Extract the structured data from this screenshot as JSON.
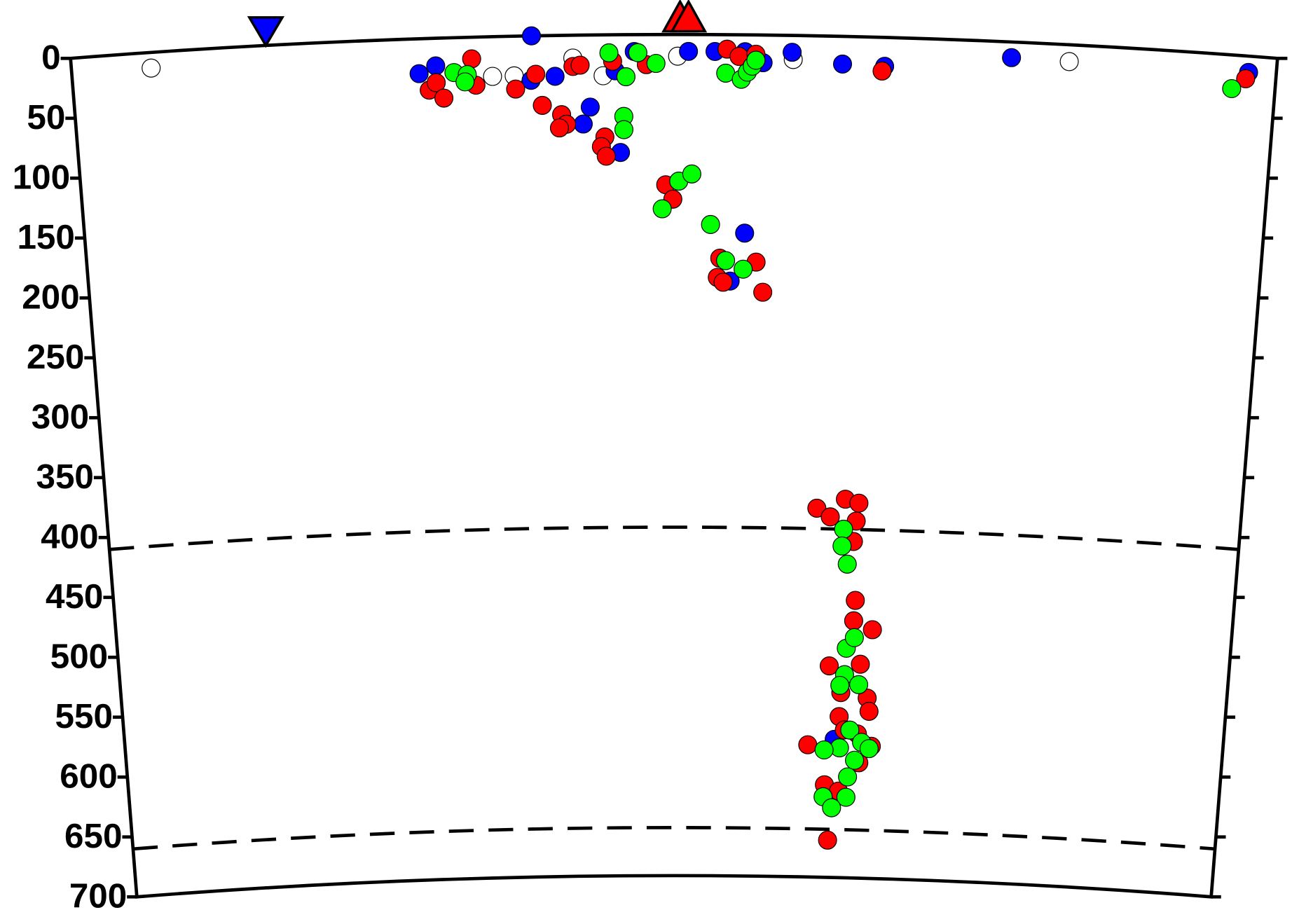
{
  "chart_data": {
    "type": "scatter",
    "xlim": [
      0,
      1000
    ],
    "ylim": [
      0,
      700
    ],
    "y_inverted": true,
    "yticks": [
      0,
      50,
      100,
      150,
      200,
      250,
      300,
      350,
      400,
      450,
      500,
      550,
      600,
      650,
      700
    ],
    "reference_depths": [
      410,
      660
    ],
    "markers": [
      {
        "x": 162,
        "color": "#0000ff",
        "shape": "triangle-down"
      },
      {
        "x": 505,
        "color": "#ff0000",
        "shape": "triangle-up"
      },
      {
        "x": 512,
        "color": "#ff0000",
        "shape": "triangle-up"
      }
    ],
    "series": [
      {
        "color": "#ffffff",
        "x": [
          66,
          349,
          367,
          416,
          441,
          503,
          599,
          828
        ],
        "values": [
          13,
          33,
          33,
          19,
          34,
          18,
          20,
          14
        ]
      },
      {
        "color": "#0000ff",
        "x": [
          382,
          288,
          302,
          381,
          401,
          430,
          424,
          455,
          451,
          467,
          512,
          534,
          559,
          574,
          598,
          640,
          675,
          780,
          977,
          560,
          548,
          646
        ],
        "values": [
          0,
          29,
          23,
          37,
          34,
          60,
          74,
          98,
          30,
          14,
          14,
          14,
          14,
          23,
          14,
          23,
          24,
          13,
          13.5,
          165,
          205,
          585
        ]
      },
      {
        "color": "#ff0000",
        "x": [
          332,
          335,
          296,
          302,
          308,
          368,
          385,
          390,
          406,
          410,
          404,
          416,
          422,
          442,
          439,
          443,
          449,
          477,
          493,
          499,
          539,
          537,
          542,
          570,
          576,
          544,
          554,
          568,
          673,
          975,
          626,
          638,
          651,
          663,
          661,
          659,
          662,
          661,
          678,
          640,
          668,
          651,
          675,
          650,
          677,
          655,
          667,
          622,
          680,
          669,
          638,
          651,
          642
        ],
        "values": [
          18,
          40,
          43,
          37,
          50,
          44,
          32,
          58,
          66,
          74,
          77,
          26,
          25,
          85,
          93,
          101,
          22,
          25,
          125,
          137,
          186,
          202,
          206,
          189,
          214,
          12,
          18,
          16,
          28,
          19,
          393,
          400,
          385,
          388,
          403,
          420,
          469,
          486,
          493,
          524,
          522,
          546,
          550,
          566,
          561,
          577,
          580,
          590,
          590,
          604,
          623,
          628,
          669
        ]
      },
      {
        "color": "#00ff00",
        "x": [
          317,
          328,
          326,
          446,
          460,
          458,
          458,
          470,
          485,
          504,
          515,
          490,
          531,
          544,
          559,
          543,
          556,
          561,
          565,
          568,
          964,
          650,
          649,
          654,
          655,
          662,
          654,
          667,
          650,
          660,
          651,
          637,
          671,
          678,
          665,
          659,
          637,
          658,
          645
        ],
        "values": [
          29,
          31,
          37,
          15,
          35,
          68,
          79,
          15,
          24,
          122,
          116,
          145,
          158,
          188,
          195,
          32,
          37,
          31,
          26,
          21,
          28,
          410,
          424,
          439,
          509,
          500,
          531,
          539,
          540,
          577,
          592,
          594,
          587,
          592,
          602,
          616,
          633,
          633,
          642
        ]
      }
    ]
  }
}
